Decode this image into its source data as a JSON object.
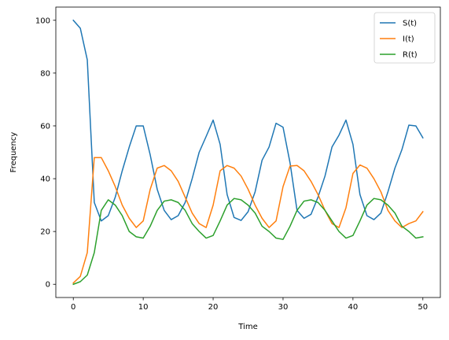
{
  "chart_data": {
    "type": "line",
    "xlabel": "Time",
    "ylabel": "Frequency",
    "xlim": [
      -2.5,
      52.5
    ],
    "ylim": [
      -5,
      105
    ],
    "xticks": [
      0,
      10,
      20,
      30,
      40,
      50
    ],
    "yticks": [
      0,
      20,
      40,
      60,
      80,
      100
    ],
    "grid": false,
    "legend_position": "top-right",
    "x": [
      0,
      1,
      2,
      3,
      4,
      5,
      6,
      7,
      8,
      9,
      10,
      11,
      12,
      13,
      14,
      15,
      16,
      17,
      18,
      19,
      20,
      21,
      22,
      23,
      24,
      25,
      26,
      27,
      28,
      29,
      30,
      31,
      32,
      33,
      34,
      35,
      36,
      37,
      38,
      39,
      40,
      41,
      42,
      43,
      44,
      45,
      46,
      47,
      48,
      49,
      50
    ],
    "series": [
      {
        "name": "S(t)",
        "color": "#1f77b4",
        "values": [
          100,
          97,
          85,
          31,
          24,
          26,
          33,
          43,
          52,
          60,
          60,
          49,
          36,
          28,
          24.5,
          26,
          31,
          40,
          50,
          56,
          62.2,
          53,
          34,
          25.3,
          24.2,
          27.5,
          35,
          47,
          52,
          61,
          59.5,
          46,
          28,
          25,
          26.5,
          33,
          41,
          52,
          56.5,
          62.2,
          53,
          34,
          26,
          24.5,
          27,
          35,
          44,
          51,
          60.3,
          60,
          55.5
        ]
      },
      {
        "name": "I(t)",
        "color": "#ff7f0e",
        "values": [
          0.5,
          3,
          12,
          48,
          48,
          43,
          37,
          30,
          25,
          21.5,
          24,
          36,
          44,
          45,
          43,
          39,
          33,
          27,
          23,
          21.5,
          30,
          43,
          45,
          44,
          41,
          36,
          30,
          25,
          21.5,
          24,
          37,
          44.8,
          45,
          43,
          39,
          34,
          28,
          23,
          21.5,
          29,
          42,
          45.2,
          44,
          40,
          35,
          28,
          24,
          21.5,
          23,
          24,
          27.5
        ]
      },
      {
        "name": "R(t)",
        "color": "#2ca02c",
        "values": [
          0,
          1,
          3.5,
          12,
          28,
          32,
          30,
          26,
          20,
          18,
          17.5,
          22,
          28,
          31.5,
          32,
          31,
          28,
          23,
          20,
          17.5,
          18.5,
          24,
          30,
          32.5,
          32,
          30,
          27,
          22,
          20,
          17.5,
          17,
          22,
          28,
          31.5,
          32,
          31,
          28,
          24,
          20,
          17.5,
          18.5,
          24,
          30,
          32.5,
          32,
          30,
          27,
          22,
          20,
          17.5,
          18
        ]
      }
    ]
  }
}
